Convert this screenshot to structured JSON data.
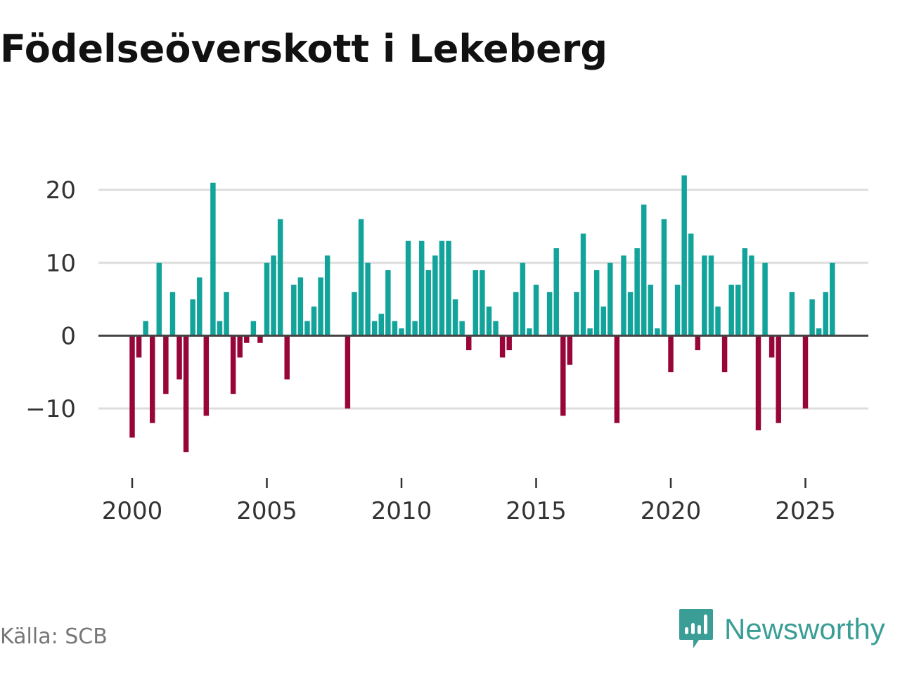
{
  "title": "Födelseöverskott i Lekeberg",
  "source": "Källa: SCB",
  "brand": {
    "name": "Newsworthy",
    "icon": "newsworthy-logo-icon"
  },
  "colors": {
    "positive": "#12a39b",
    "negative": "#980538",
    "grid": "#dddddd",
    "zero": "#444444",
    "brand": "#3a9e96"
  },
  "chart_data": {
    "type": "bar",
    "title": "Födelseöverskott i Lekeberg",
    "xlabel": "",
    "ylabel": "",
    "frequency": "quarterly",
    "x_start": 2000,
    "x_step": 0.25,
    "xlim": [
      1998.75,
      2027.4
    ],
    "ylim": [
      -18.4,
      26
    ],
    "yticks": [
      -10,
      0,
      10,
      20
    ],
    "ytick_labels": [
      "−10",
      "0",
      "10",
      "20"
    ],
    "xticks": [
      2000,
      2005,
      2010,
      2015,
      2020,
      2025
    ],
    "xtick_labels": [
      "2000",
      "2005",
      "2010",
      "2015",
      "2020",
      "2025"
    ],
    "values": [
      -14,
      -3,
      2,
      -12,
      10,
      -8,
      6,
      -6,
      -16,
      5,
      8,
      -11,
      21,
      2,
      6,
      -8,
      -3,
      -1,
      2,
      -1,
      10,
      11,
      16,
      -6,
      7,
      8,
      2,
      4,
      8,
      11,
      0,
      0,
      -10,
      6,
      16,
      10,
      2,
      3,
      9,
      2,
      1,
      13,
      2,
      13,
      9,
      11,
      13,
      13,
      5,
      2,
      -2,
      9,
      9,
      4,
      2,
      -3,
      -2,
      6,
      10,
      1,
      7,
      0,
      6,
      12,
      -11,
      -4,
      6,
      14,
      1,
      9,
      4,
      10,
      -12,
      11,
      6,
      12,
      18,
      7,
      1,
      16,
      -5,
      7,
      22,
      14,
      -2,
      11,
      11,
      4,
      -5,
      7,
      7,
      12,
      11,
      -13,
      10,
      -3,
      -12,
      0,
      6,
      0,
      -10,
      5,
      1,
      6,
      10
    ]
  }
}
